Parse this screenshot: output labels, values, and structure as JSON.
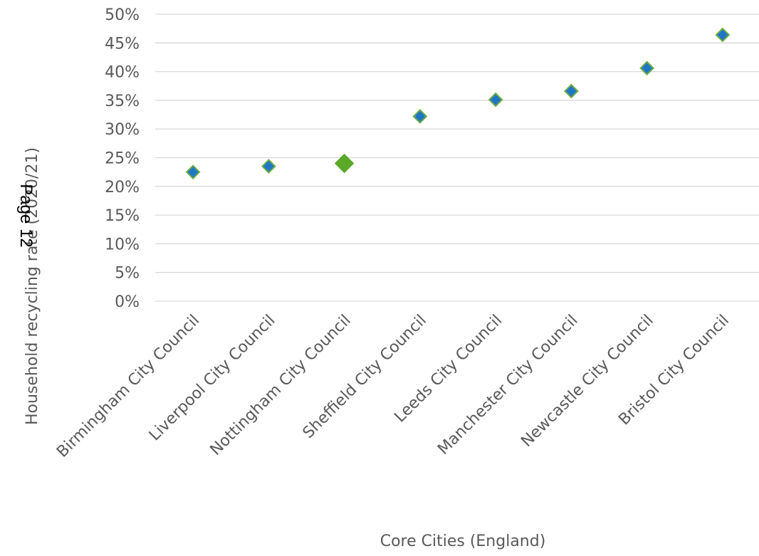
{
  "chart_data": {
    "type": "scatter",
    "categories": [
      "Birmingham City Council",
      "Liverpool City Council",
      "Nottingham City Council",
      "Sheffield City Council",
      "Leeds City Council",
      "Manchester City Council",
      "Newcastle City Council",
      "Bristol City Council"
    ],
    "values": [
      0.225,
      0.235,
      0.24,
      0.322,
      0.351,
      0.366,
      0.406,
      0.464
    ],
    "highlight_category": "Nottingham City Council",
    "xlabel": "Core Cities (England)",
    "ylabel": "Household recycling rate (2020/21)",
    "ylim": [
      0,
      0.5
    ],
    "yticks": [
      "0%",
      "5%",
      "10%",
      "15%",
      "20%",
      "25%",
      "30%",
      "35%",
      "40%",
      "45%",
      "50%"
    ],
    "grid": true,
    "colors": {
      "marker": "#1f77c4",
      "marker_edge": "#70ad47",
      "highlight": "#5ba829",
      "grid": "#d9d9d9",
      "text": "#595959"
    }
  },
  "overlay": {
    "page_label": "Page 12"
  }
}
